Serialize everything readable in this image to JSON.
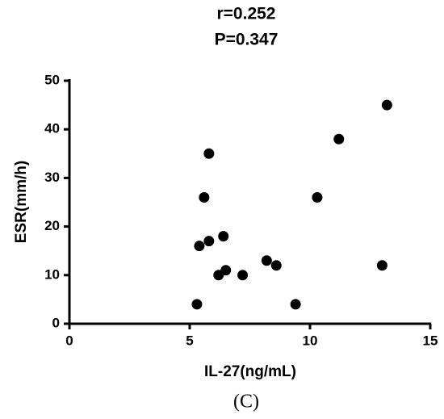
{
  "chart_data": {
    "type": "scatter",
    "title": [
      "r=0.252",
      "P=0.347"
    ],
    "x_label": "IL-27(ng/mL)",
    "y_label": "ESR(mm/h)",
    "caption": "(C)",
    "color": "#000000",
    "x": [
      5.3,
      5.4,
      5.8,
      5.6,
      5.8,
      6.4,
      6.2,
      6.5,
      7.2,
      8.2,
      8.6,
      9.4,
      10.3,
      11.2,
      13.0,
      13.2
    ],
    "values": [
      4,
      16,
      17,
      26,
      35,
      18,
      10,
      11,
      10,
      13,
      12,
      4,
      26,
      38,
      12,
      45
    ],
    "xlim": [
      0,
      15
    ],
    "xticks": [
      0,
      5,
      10,
      15
    ],
    "ylim": [
      0,
      50
    ],
    "yticks": [
      0,
      10,
      20,
      30,
      40,
      50
    ]
  }
}
